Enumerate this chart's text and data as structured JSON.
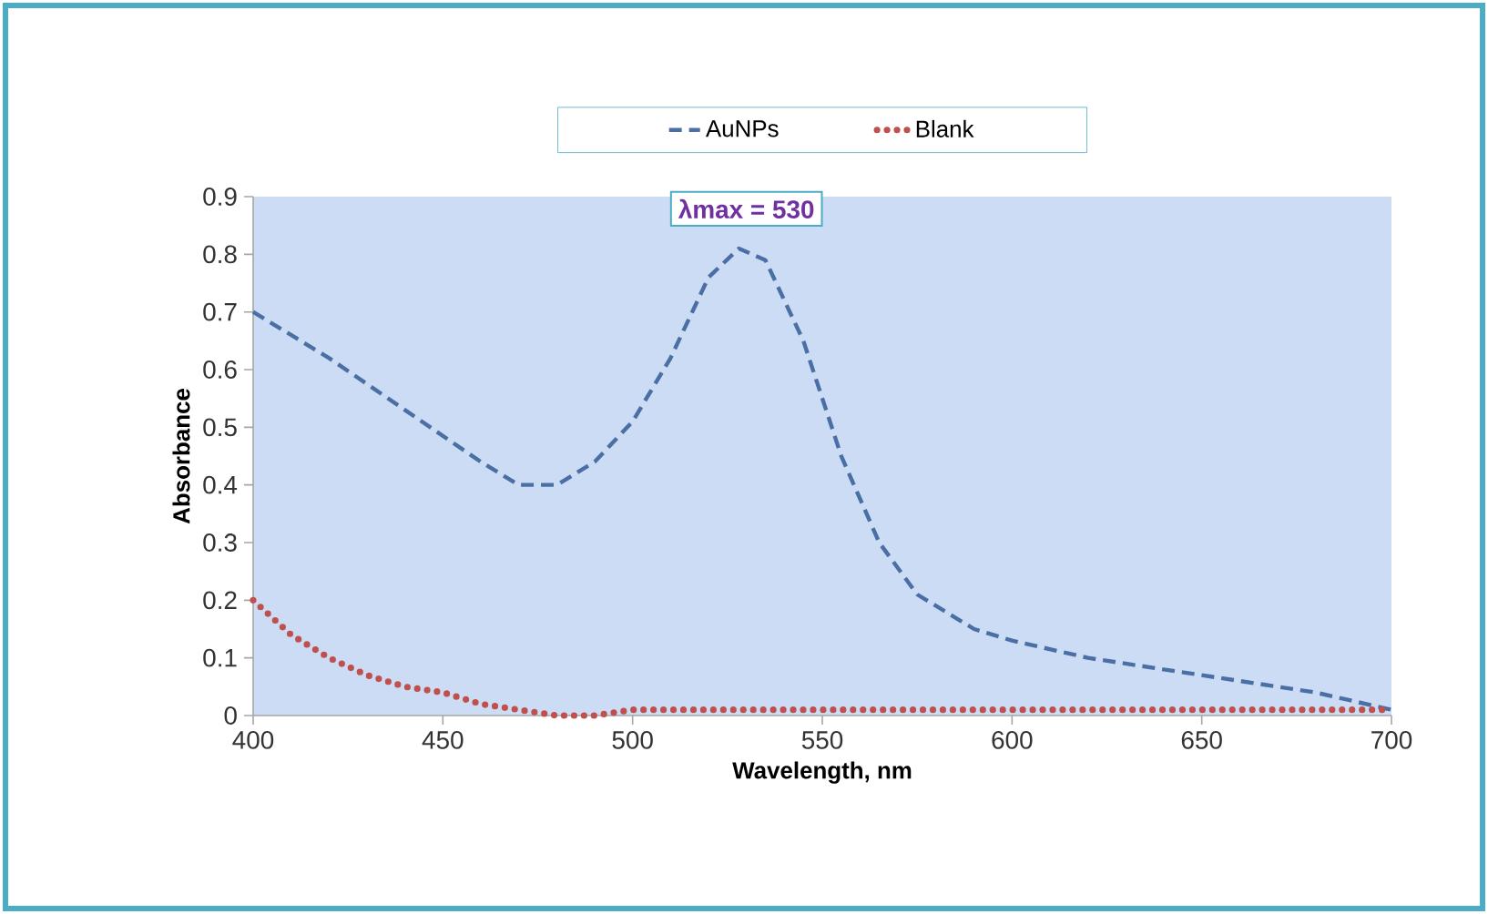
{
  "chart_data": {
    "type": "line",
    "xlabel": "Wavelength, nm",
    "ylabel": "Absorbance",
    "xlim": [
      400,
      700
    ],
    "ylim": [
      0,
      0.9
    ],
    "xticks": [
      400,
      450,
      500,
      550,
      600,
      650,
      700
    ],
    "yticks": [
      0,
      0.1,
      0.2,
      0.3,
      0.4,
      0.5,
      0.6,
      0.7,
      0.8,
      0.9
    ],
    "grid": false,
    "legend": "top",
    "marker": "none",
    "annotations": [
      {
        "text": "λmax = 530",
        "x": 530,
        "y": 0.81
      }
    ],
    "series": [
      {
        "name": "AuNPs",
        "color": "#4a6fa5",
        "line_style": "dashed",
        "x": [
          400,
          420,
          440,
          460,
          470,
          480,
          490,
          500,
          510,
          520,
          528,
          535,
          545,
          555,
          565,
          575,
          590,
          600,
          620,
          650,
          680,
          700
        ],
        "values": [
          0.7,
          0.62,
          0.53,
          0.44,
          0.4,
          0.4,
          0.44,
          0.51,
          0.62,
          0.76,
          0.81,
          0.79,
          0.65,
          0.45,
          0.3,
          0.21,
          0.15,
          0.13,
          0.1,
          0.07,
          0.04,
          0.01
        ]
      },
      {
        "name": "Blank",
        "color": "#c0504d",
        "line_style": "dotted",
        "x": [
          400,
          410,
          420,
          430,
          440,
          450,
          460,
          470,
          480,
          490,
          500,
          550,
          600,
          650,
          700
        ],
        "values": [
          0.2,
          0.14,
          0.1,
          0.07,
          0.05,
          0.04,
          0.02,
          0.01,
          0.0,
          0.0,
          0.01,
          0.01,
          0.01,
          0.01,
          0.01
        ]
      }
    ]
  }
}
